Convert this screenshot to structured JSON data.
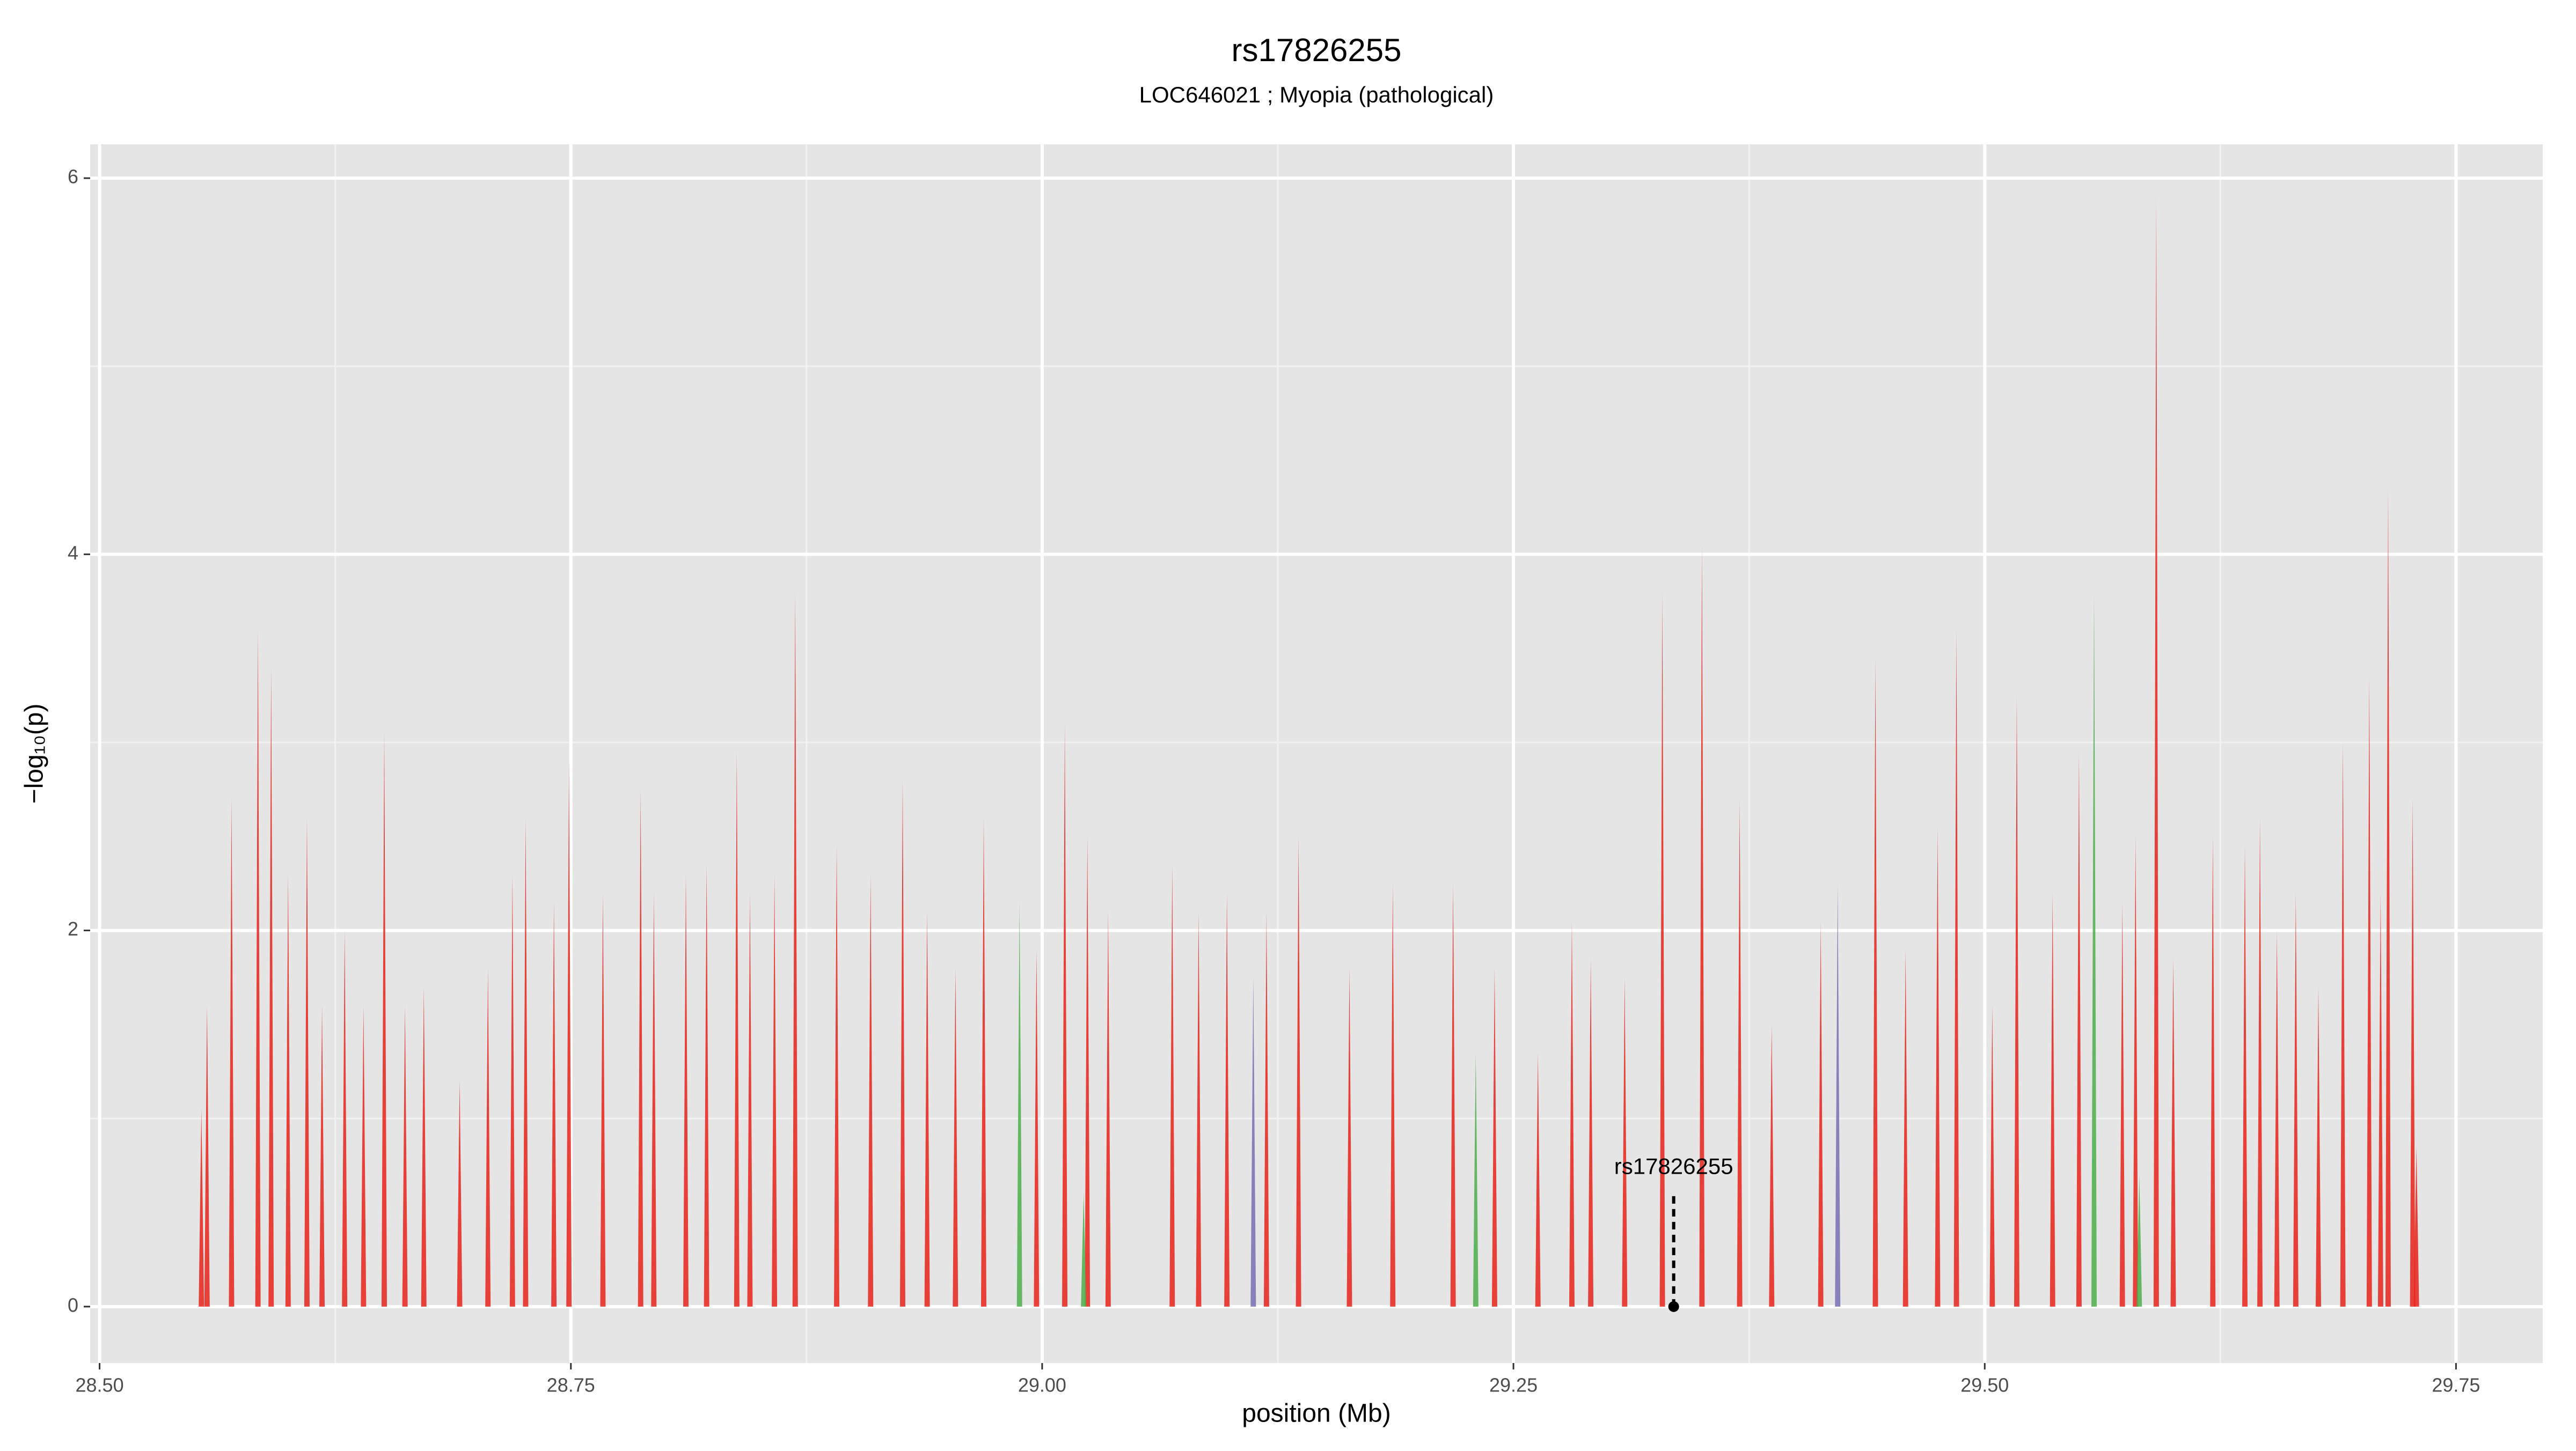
{
  "chart_data": {
    "type": "needle",
    "title": "rs17826255",
    "subtitle": "LOC646021 ; Myopia (pathological)",
    "x_label": "position (Mb)",
    "y_label": "−log₁₀(p)",
    "xlim": [
      28.495,
      29.796
    ],
    "ylim": [
      -0.3,
      6.18
    ],
    "xticks": [
      {
        "value": 28.5,
        "label": "28.50"
      },
      {
        "value": 28.75,
        "label": "28.75"
      },
      {
        "value": 29.0,
        "label": "29.00"
      },
      {
        "value": 29.25,
        "label": "29.25"
      },
      {
        "value": 29.5,
        "label": "29.50"
      },
      {
        "value": 29.75,
        "label": "29.75"
      }
    ],
    "yticks": [
      0,
      2,
      4,
      6
    ],
    "minor_xticks": [
      28.625,
      28.875,
      29.125,
      29.375,
      29.625
    ],
    "minor_yticks": [
      1,
      3,
      5
    ],
    "grid": true,
    "series": [
      {
        "color": "#e8231b",
        "x": [
          28.554,
          28.557,
          28.57,
          28.584,
          28.591,
          28.6,
          28.61,
          28.618,
          28.63,
          28.64,
          28.651,
          28.662,
          28.672,
          28.691,
          28.706,
          28.719,
          28.726,
          28.741,
          28.749,
          28.767,
          28.787,
          28.794,
          28.811,
          28.822,
          28.838,
          28.845,
          28.858,
          28.869,
          28.891,
          28.909,
          28.926,
          28.939,
          28.954,
          28.969,
          28.997,
          29.012,
          29.024,
          29.035,
          29.069,
          29.083,
          29.098,
          29.119,
          29.136,
          29.163,
          29.186,
          29.218,
          29.24,
          29.263,
          29.281,
          29.291,
          29.309,
          29.329,
          29.35,
          29.37,
          29.387,
          29.413,
          29.442,
          29.458,
          29.475,
          29.485,
          29.504,
          29.517,
          29.536,
          29.55,
          29.573,
          29.58,
          29.591,
          29.6,
          29.621,
          29.638,
          29.646,
          29.655,
          29.665,
          29.677,
          29.69,
          29.704,
          29.71,
          29.714,
          29.727,
          29.729
        ],
        "values": [
          1.05,
          1.6,
          2.7,
          3.6,
          3.4,
          2.3,
          2.6,
          1.6,
          2.0,
          1.6,
          3.05,
          1.6,
          1.7,
          1.2,
          1.8,
          2.3,
          2.6,
          2.15,
          2.9,
          2.2,
          2.75,
          2.2,
          2.3,
          2.35,
          2.95,
          2.2,
          2.3,
          3.8,
          2.45,
          2.3,
          2.8,
          2.1,
          1.8,
          2.6,
          1.9,
          3.1,
          2.5,
          2.1,
          2.35,
          2.1,
          2.2,
          2.1,
          2.5,
          1.8,
          2.25,
          2.25,
          1.8,
          1.35,
          2.05,
          1.85,
          1.75,
          3.8,
          4.05,
          2.7,
          1.5,
          2.05,
          3.45,
          1.9,
          2.55,
          3.6,
          1.6,
          3.25,
          2.2,
          2.95,
          2.15,
          2.5,
          5.9,
          1.85,
          2.5,
          2.45,
          2.6,
          2.0,
          2.2,
          1.7,
          3.0,
          3.35,
          2.2,
          4.35,
          2.7,
          0.85
        ]
      },
      {
        "color": "#4daf4a",
        "x": [
          28.988,
          29.022,
          29.23,
          29.558,
          29.582
        ],
        "values": [
          2.15,
          0.6,
          1.35,
          3.8,
          0.7
        ]
      },
      {
        "color": "#7570b3",
        "x": [
          29.112,
          29.422
        ],
        "values": [
          1.75,
          2.25
        ]
      }
    ],
    "annotation": {
      "label": "rs17826255",
      "x": 29.335,
      "y": 0,
      "line_top": 0.6
    }
  }
}
